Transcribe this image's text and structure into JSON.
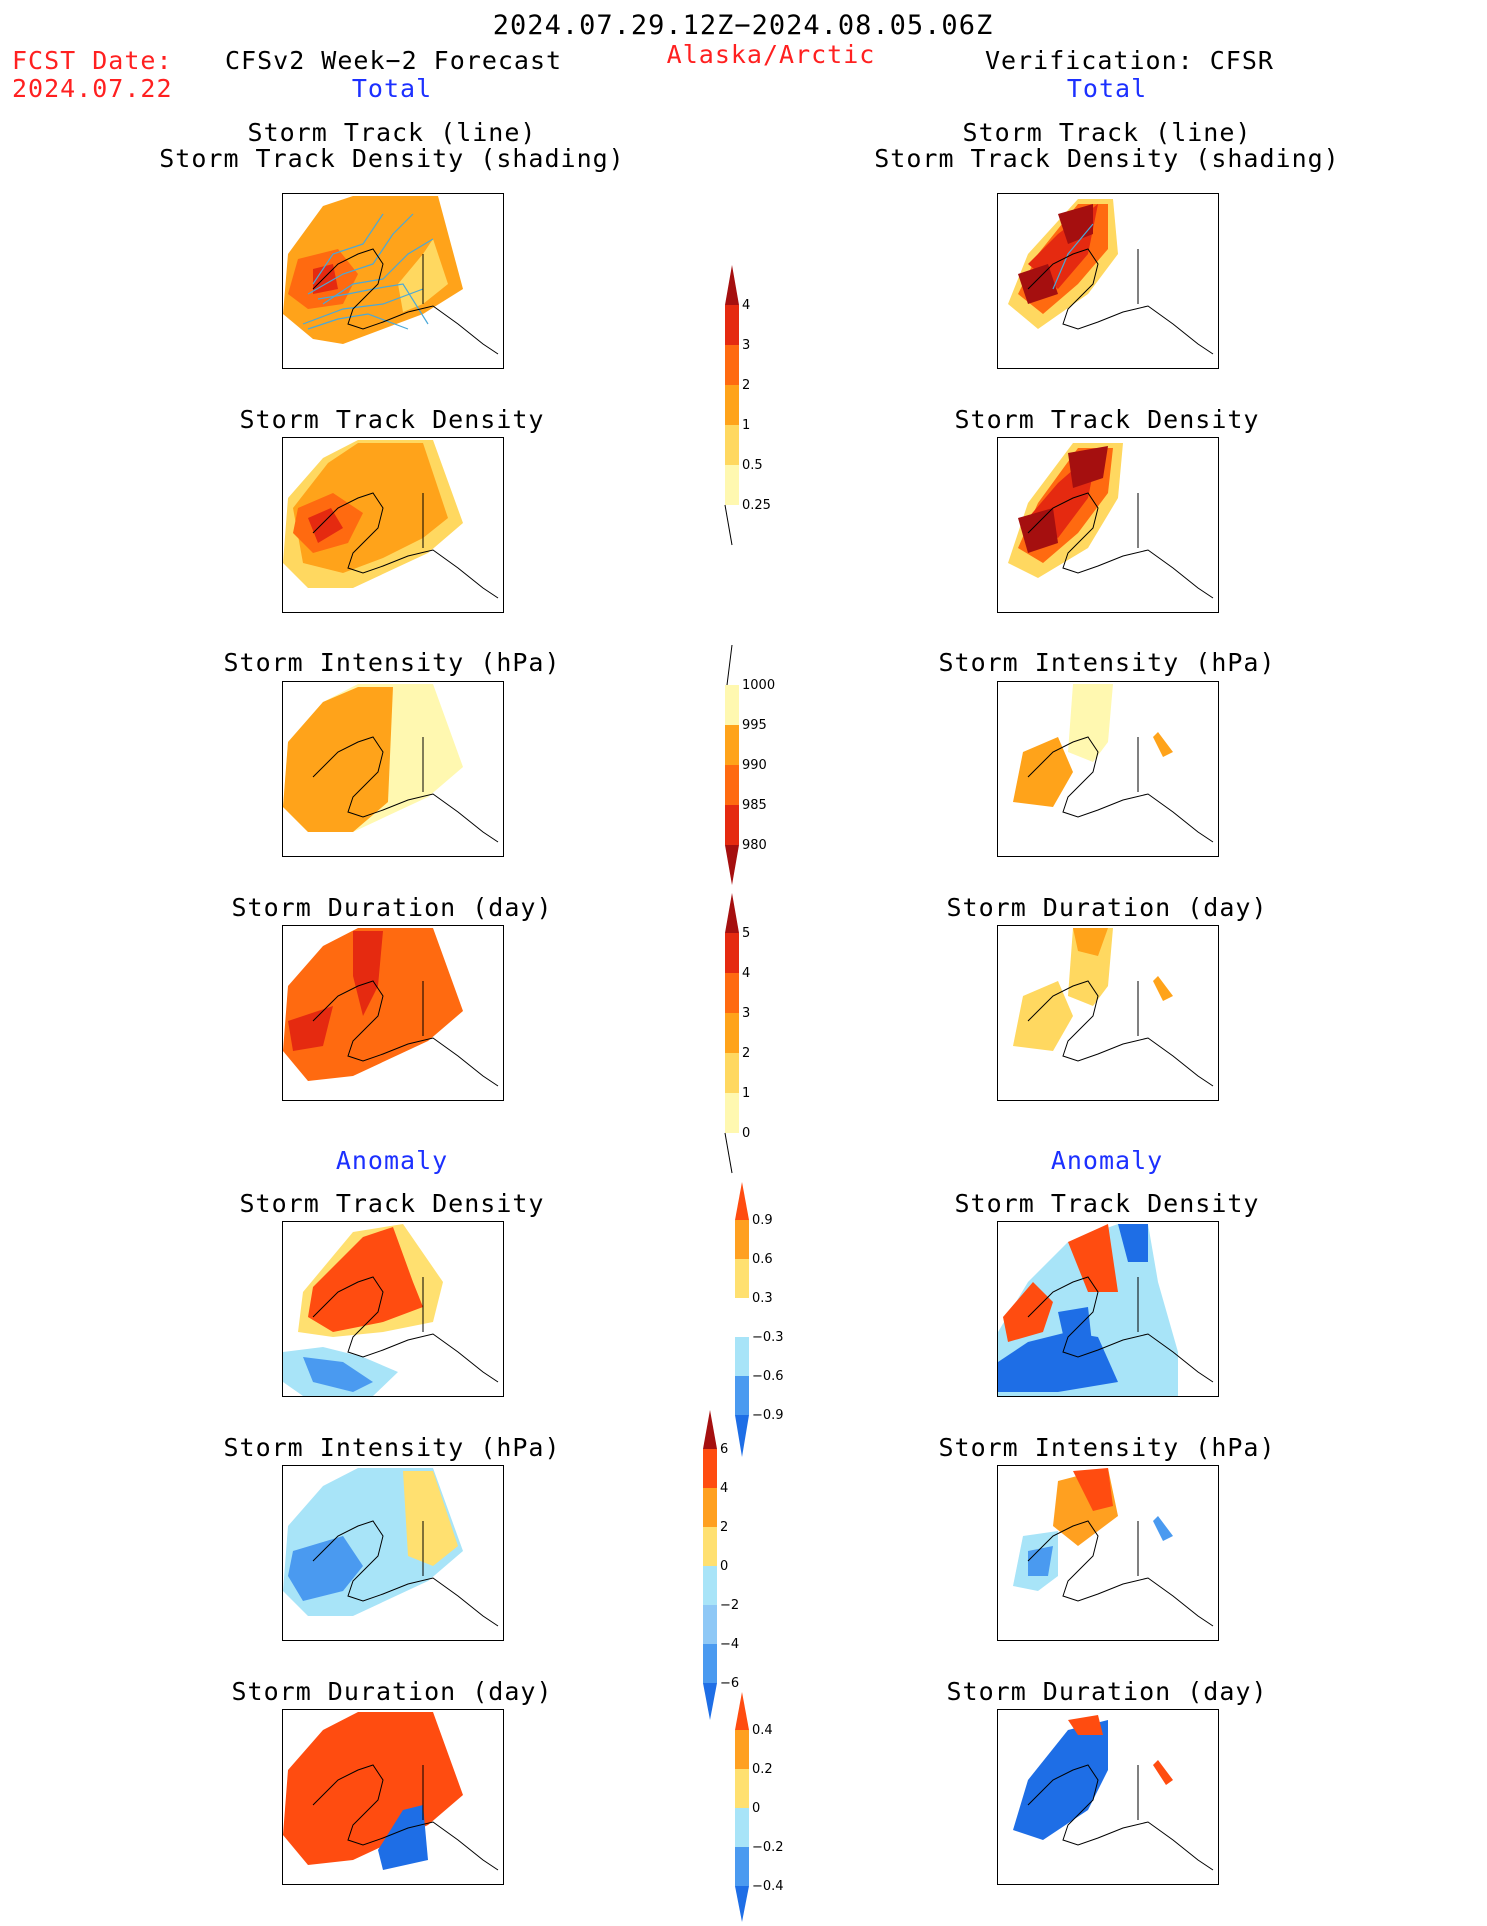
{
  "header": {
    "period": "2024.07.29.12Z−2024.08.05.06Z",
    "region": "Alaska/Arctic",
    "fcst_label": "FCST Date:",
    "fcst_date": "2024.07.22",
    "left_title": "CFSv2 Week−2 Forecast",
    "right_title": "Verification: CFSR"
  },
  "section_labels": {
    "total": "Total",
    "anomaly": "Anomaly"
  },
  "panel_titles": {
    "track_line": "Storm Track (line)",
    "track_density_shading": "Storm Track Density (shading)",
    "density": "Storm Track Density",
    "intensity": "Storm Intensity (hPa)",
    "duration": "Storm Duration (day)"
  },
  "colorbars": {
    "density": [
      "4",
      "3",
      "2",
      "1",
      "0.5",
      "0.25"
    ],
    "intensity": [
      "1000",
      "995",
      "990",
      "985",
      "980"
    ],
    "duration": [
      "5",
      "4",
      "3",
      "2",
      "1",
      "0"
    ],
    "density_anom": [
      "0.9",
      "0.6",
      "0.3",
      "−0.3",
      "−0.6",
      "−0.9"
    ],
    "intensity_anom": [
      "6",
      "4",
      "2",
      "0",
      "−2",
      "−4",
      "−6"
    ],
    "duration_anom": [
      "0.4",
      "0.2",
      "0",
      "−0.2",
      "−0.4"
    ]
  },
  "palettes": {
    "warm": [
      "#fff8b0",
      "#ffd860",
      "#ffa31a",
      "#ff6a10",
      "#e52a10",
      "#a50f0f"
    ],
    "diverging": [
      "#1e6ee6",
      "#4a9af0",
      "#a8e4f8",
      "#ffffff",
      "#ffe070",
      "#ffa020",
      "#ff4c10"
    ]
  }
}
